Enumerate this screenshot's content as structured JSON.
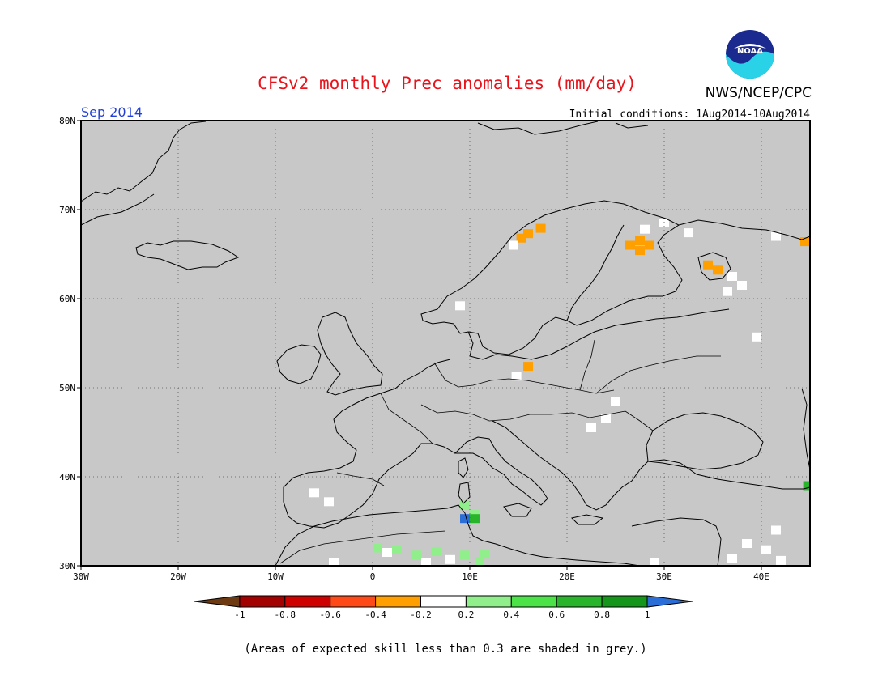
{
  "header": {
    "title": "CFSv2 monthly Prec anomalies (mm/day)",
    "valid_month": "Sep 2014",
    "initial_conditions": "Initial conditions: 1Aug2014-10Aug2014",
    "organization": "NWS/NCEP/CPC",
    "logo_text": "NOAA"
  },
  "map": {
    "region": "Europe",
    "lon_range": [
      -30,
      45
    ],
    "lat_range": [
      30,
      80
    ],
    "lon_ticks": [
      "30W",
      "20W",
      "10W",
      "0",
      "10E",
      "20E",
      "30E",
      "40E"
    ],
    "lat_ticks": [
      "80N",
      "70N",
      "60N",
      "50N",
      "40N",
      "30N"
    ],
    "background": "#c8c8c8",
    "cells": [
      {
        "lon": 17.3,
        "lat": 67.9,
        "cls": "-0.3"
      },
      {
        "lon": 16.0,
        "lat": 67.3,
        "cls": "-0.3"
      },
      {
        "lon": 15.3,
        "lat": 66.8,
        "cls": "-0.3"
      },
      {
        "lon": 27.5,
        "lat": 66.5,
        "cls": "-0.3"
      },
      {
        "lon": 27.5,
        "lat": 65.4,
        "cls": "-0.3"
      },
      {
        "lon": 28.5,
        "lat": 66.0,
        "cls": "-0.3"
      },
      {
        "lon": 26.5,
        "lat": 66.0,
        "cls": "-0.3"
      },
      {
        "lon": 34.5,
        "lat": 63.8,
        "cls": "-0.3"
      },
      {
        "lon": 35.5,
        "lat": 63.2,
        "cls": "-0.3"
      },
      {
        "lon": 44.5,
        "lat": 66.4,
        "cls": "-0.3"
      },
      {
        "lon": 16.0,
        "lat": 52.4,
        "cls": "-0.3"
      },
      {
        "lon": 28.0,
        "lat": 67.8,
        "cls": "0"
      },
      {
        "lon": 30.0,
        "lat": 68.5,
        "cls": "0"
      },
      {
        "lon": 32.5,
        "lat": 67.4,
        "cls": "0"
      },
      {
        "lon": 37.0,
        "lat": 62.5,
        "cls": "0"
      },
      {
        "lon": 38.0,
        "lat": 61.5,
        "cls": "0"
      },
      {
        "lon": 36.5,
        "lat": 60.8,
        "cls": "0"
      },
      {
        "lon": 41.5,
        "lat": 67.0,
        "cls": "0"
      },
      {
        "lon": 14.5,
        "lat": 66.0,
        "cls": "0"
      },
      {
        "lon": 14.8,
        "lat": 51.3,
        "cls": "0"
      },
      {
        "lon": 25.0,
        "lat": 48.5,
        "cls": "0"
      },
      {
        "lon": 24.0,
        "lat": 46.5,
        "cls": "0"
      },
      {
        "lon": 22.5,
        "lat": 45.5,
        "cls": "0"
      },
      {
        "lon": -6.0,
        "lat": 38.2,
        "cls": "0"
      },
      {
        "lon": -4.5,
        "lat": 37.2,
        "cls": "0"
      },
      {
        "lon": 41.5,
        "lat": 34.0,
        "cls": "0"
      },
      {
        "lon": 38.5,
        "lat": 32.5,
        "cls": "0"
      },
      {
        "lon": 40.5,
        "lat": 31.8,
        "cls": "0"
      },
      {
        "lon": 42.0,
        "lat": 30.6,
        "cls": "0"
      },
      {
        "lon": 37.0,
        "lat": 30.8,
        "cls": "0"
      },
      {
        "lon": 1.5,
        "lat": 31.5,
        "cls": "0"
      },
      {
        "lon": 8.0,
        "lat": 30.7,
        "cls": "0"
      },
      {
        "lon": 5.5,
        "lat": 30.4,
        "cls": "0"
      },
      {
        "lon": -4.0,
        "lat": 30.4,
        "cls": "0"
      },
      {
        "lon": 29.0,
        "lat": 30.4,
        "cls": "0"
      },
      {
        "lon": 39.5,
        "lat": 55.7,
        "cls": "0"
      },
      {
        "lon": 9.0,
        "lat": 59.2,
        "cls": "0"
      },
      {
        "lon": 9.5,
        "lat": 36.8,
        "cls": "0.3"
      },
      {
        "lon": 10.5,
        "lat": 35.8,
        "cls": "0.3"
      },
      {
        "lon": 0.5,
        "lat": 32.0,
        "cls": "0.3"
      },
      {
        "lon": 2.5,
        "lat": 31.8,
        "cls": "0.3"
      },
      {
        "lon": 4.5,
        "lat": 31.2,
        "cls": "0.3"
      },
      {
        "lon": 9.5,
        "lat": 31.2,
        "cls": "0.3"
      },
      {
        "lon": 11.5,
        "lat": 31.3,
        "cls": "0.3"
      },
      {
        "lon": 11.0,
        "lat": 30.5,
        "cls": "0.3"
      },
      {
        "lon": 6.5,
        "lat": 31.6,
        "cls": "0.3"
      },
      {
        "lon": 10.5,
        "lat": 35.3,
        "cls": "0.7"
      },
      {
        "lon": 44.8,
        "lat": 39.0,
        "cls": "0.7"
      },
      {
        "lon": 9.5,
        "lat": 35.3,
        "cls": "1.1"
      }
    ]
  },
  "colorbar": {
    "labels": [
      "-1",
      "-0.8",
      "-0.6",
      "-0.4",
      "-0.2",
      "0.2",
      "0.4",
      "0.6",
      "0.8",
      "1"
    ],
    "colors": [
      "#6e3a12",
      "#a30000",
      "#cf0000",
      "#ff4a18",
      "#ff9f00",
      "#ffffff",
      "#90ef8a",
      "#4ce349",
      "#28b52b",
      "#14961b",
      "#2b6ed8"
    ],
    "classes": {
      "-0.3": "#ff9f00",
      "0": "#ffffff",
      "0.3": "#90ef8a",
      "0.7": "#28b52b",
      "1.1": "#2b6ed8"
    }
  },
  "footer": {
    "note": "(Areas of expected skill less than 0.3 are shaded in grey.)"
  }
}
